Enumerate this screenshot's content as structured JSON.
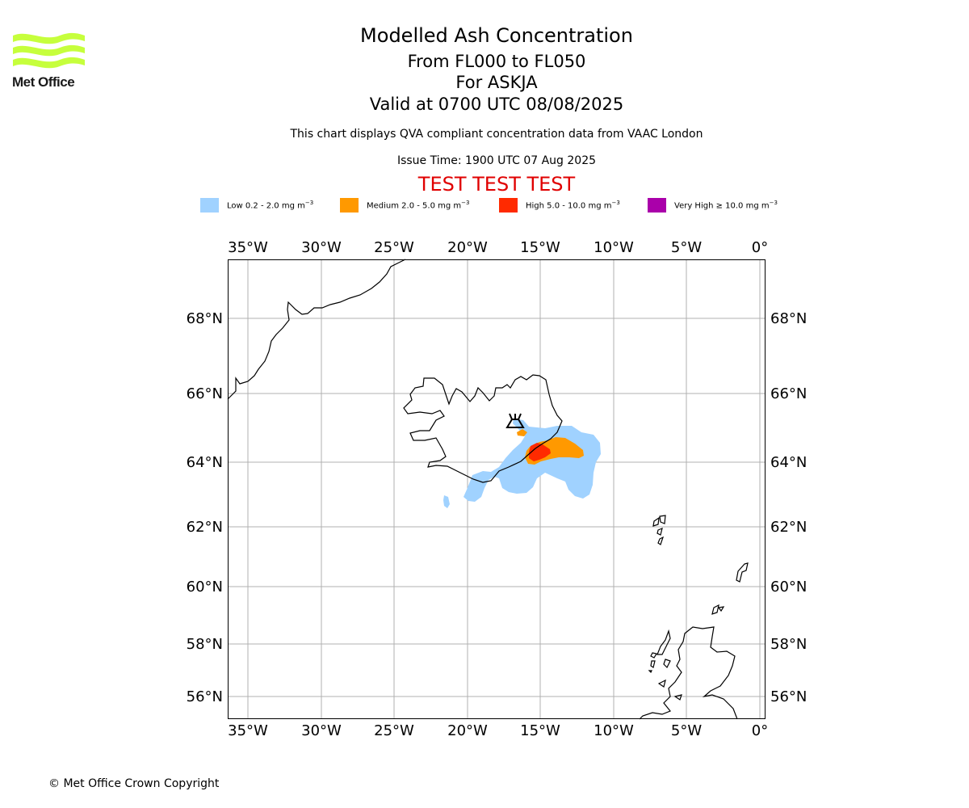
{
  "logo": {
    "name": "Met Office",
    "wave_color": "#c6ff3c"
  },
  "header": {
    "title": "Modelled Ash Concentration",
    "levels": "From FL000 to FL050",
    "volcano": "For ASKJA",
    "valid": "Valid at 0700 UTC 08/08/2025",
    "note": "This chart displays QVA compliant concentration data from VAAC London",
    "issue_time": "Issue Time: 1900 UTC 07 Aug 2025",
    "test_banner": "TEST TEST TEST"
  },
  "legend": [
    {
      "label": "Low 0.2 - 2.0 mg m",
      "exp": "−3",
      "color": "#a0d2ff"
    },
    {
      "label": "Medium 2.0 - 5.0 mg m",
      "exp": "−3",
      "color": "#ff9900"
    },
    {
      "label": "High 5.0 - 10.0 mg m",
      "exp": "−3",
      "color": "#ff2a00"
    },
    {
      "label": "Very High  ≥  10.0 mg m",
      "exp": "−3",
      "color": "#aa00aa"
    }
  ],
  "map": {
    "longitude_labels": [
      "35°W",
      "30°W",
      "25°W",
      "20°W",
      "15°W",
      "10°W",
      "5°W",
      "0°"
    ],
    "latitude_labels": [
      "68°N",
      "66°N",
      "64°N",
      "62°N",
      "60°N",
      "58°N",
      "56°N"
    ],
    "volcano_symbol": "volcano-icon",
    "grid": true
  },
  "footer": {
    "copyright": "© Met Office Crown Copyright"
  }
}
